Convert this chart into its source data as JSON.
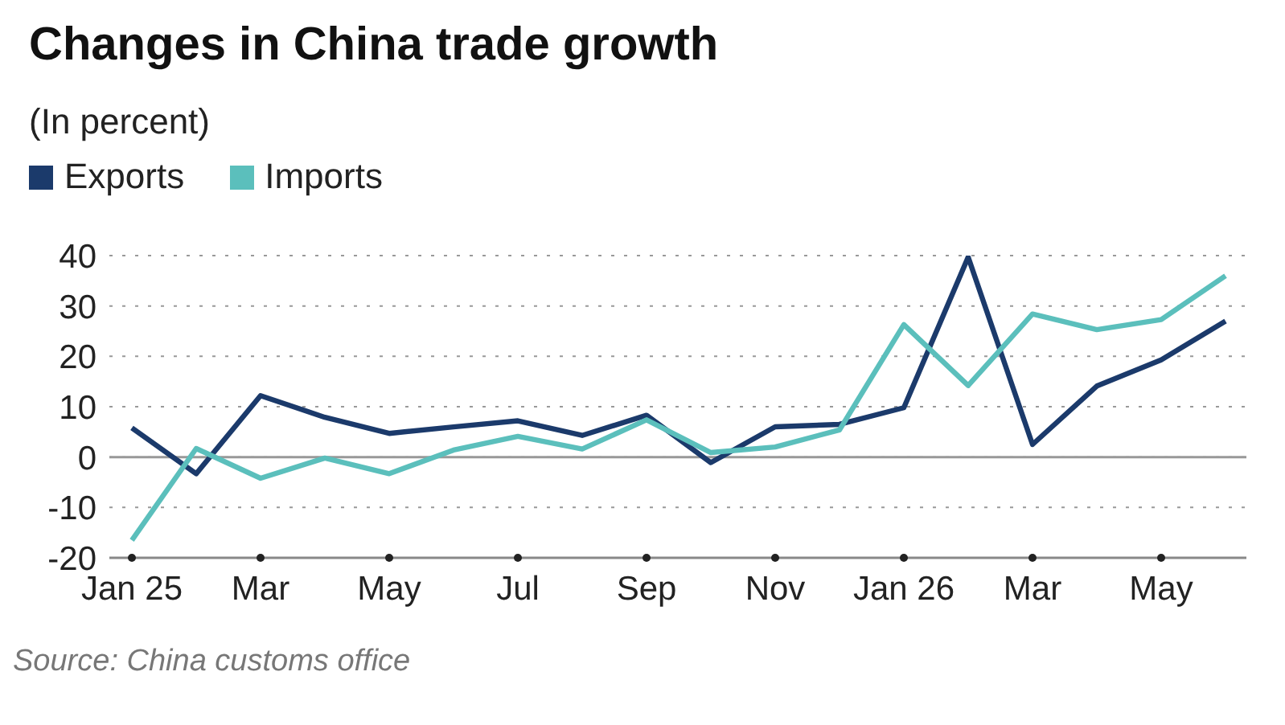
{
  "chart_data": {
    "type": "line",
    "title": "Changes in China trade growth",
    "subtitle": "(In percent)",
    "categories": [
      "Jan 25",
      null,
      "Mar",
      null,
      "May",
      null,
      "Jul",
      null,
      "Sep",
      null,
      "Nov",
      null,
      "Jan 26",
      null,
      "Mar",
      null,
      "May",
      null
    ],
    "series": [
      {
        "name": "Exports",
        "color": "#1b3a6b",
        "values": [
          5.8,
          -3.3,
          12.2,
          7.9,
          4.7,
          6.0,
          7.2,
          4.3,
          8.3,
          -1.1,
          6.0,
          6.5,
          9.8,
          39.7,
          2.5,
          14.1,
          19.3,
          27.0
        ]
      },
      {
        "name": "Imports",
        "color": "#5bbfbc",
        "values": [
          -16.5,
          1.7,
          -4.2,
          -0.2,
          -3.3,
          1.4,
          4.1,
          1.6,
          7.4,
          0.9,
          2.0,
          5.4,
          26.3,
          14.2,
          28.4,
          25.3,
          27.3,
          36.0
        ]
      }
    ],
    "ylim": [
      -20,
      40
    ],
    "yticks": [
      -20,
      -10,
      0,
      10,
      20,
      30,
      40
    ],
    "grid": "y",
    "legend": "top left",
    "marker": "none",
    "line_style": "solid",
    "ref_lines": [
      {
        "axis": "y",
        "value": 0,
        "color": "#999999"
      }
    ],
    "annotations": [
      "Source: China customs office"
    ]
  }
}
